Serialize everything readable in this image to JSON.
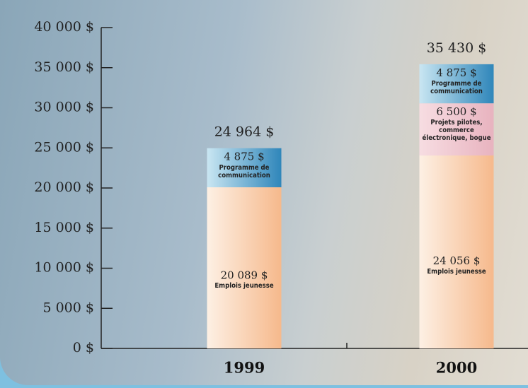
{
  "chart_data": {
    "type": "stacked-bar",
    "categories": [
      "1999",
      "2000"
    ],
    "series": [
      {
        "name": "Emplois jeunesse",
        "color": "#f7c49a",
        "values": [
          20089,
          24056
        ],
        "value_labels": [
          "20 089 $",
          "24 056 $"
        ]
      },
      {
        "name": "Projets pilotes, commerce électronique, bogue",
        "color": "#eec3cb",
        "values": [
          null,
          6500
        ],
        "value_labels": [
          null,
          "6 500 $"
        ]
      },
      {
        "name": "Programme de communication",
        "color": "#3f93c2",
        "values": [
          4875,
          4875
        ],
        "value_labels": [
          "4 875 $",
          "4 875 $"
        ]
      }
    ],
    "totals": [
      24964,
      35430
    ],
    "total_labels": [
      "24 964 $",
      "35 430 $"
    ],
    "ylim": [
      0,
      40000
    ],
    "yticks": [
      {
        "value": 0,
        "label": "0 $"
      },
      {
        "value": 5000,
        "label": "5 000 $"
      },
      {
        "value": 10000,
        "label": "10 000 $"
      },
      {
        "value": 15000,
        "label": "15 000 $"
      },
      {
        "value": 20000,
        "label": "20 000 $"
      },
      {
        "value": 25000,
        "label": "25 000 $"
      },
      {
        "value": 30000,
        "label": "30 000 $"
      },
      {
        "value": 35000,
        "label": "35 000 $"
      },
      {
        "value": 40000,
        "label": "40 000 $"
      }
    ]
  }
}
